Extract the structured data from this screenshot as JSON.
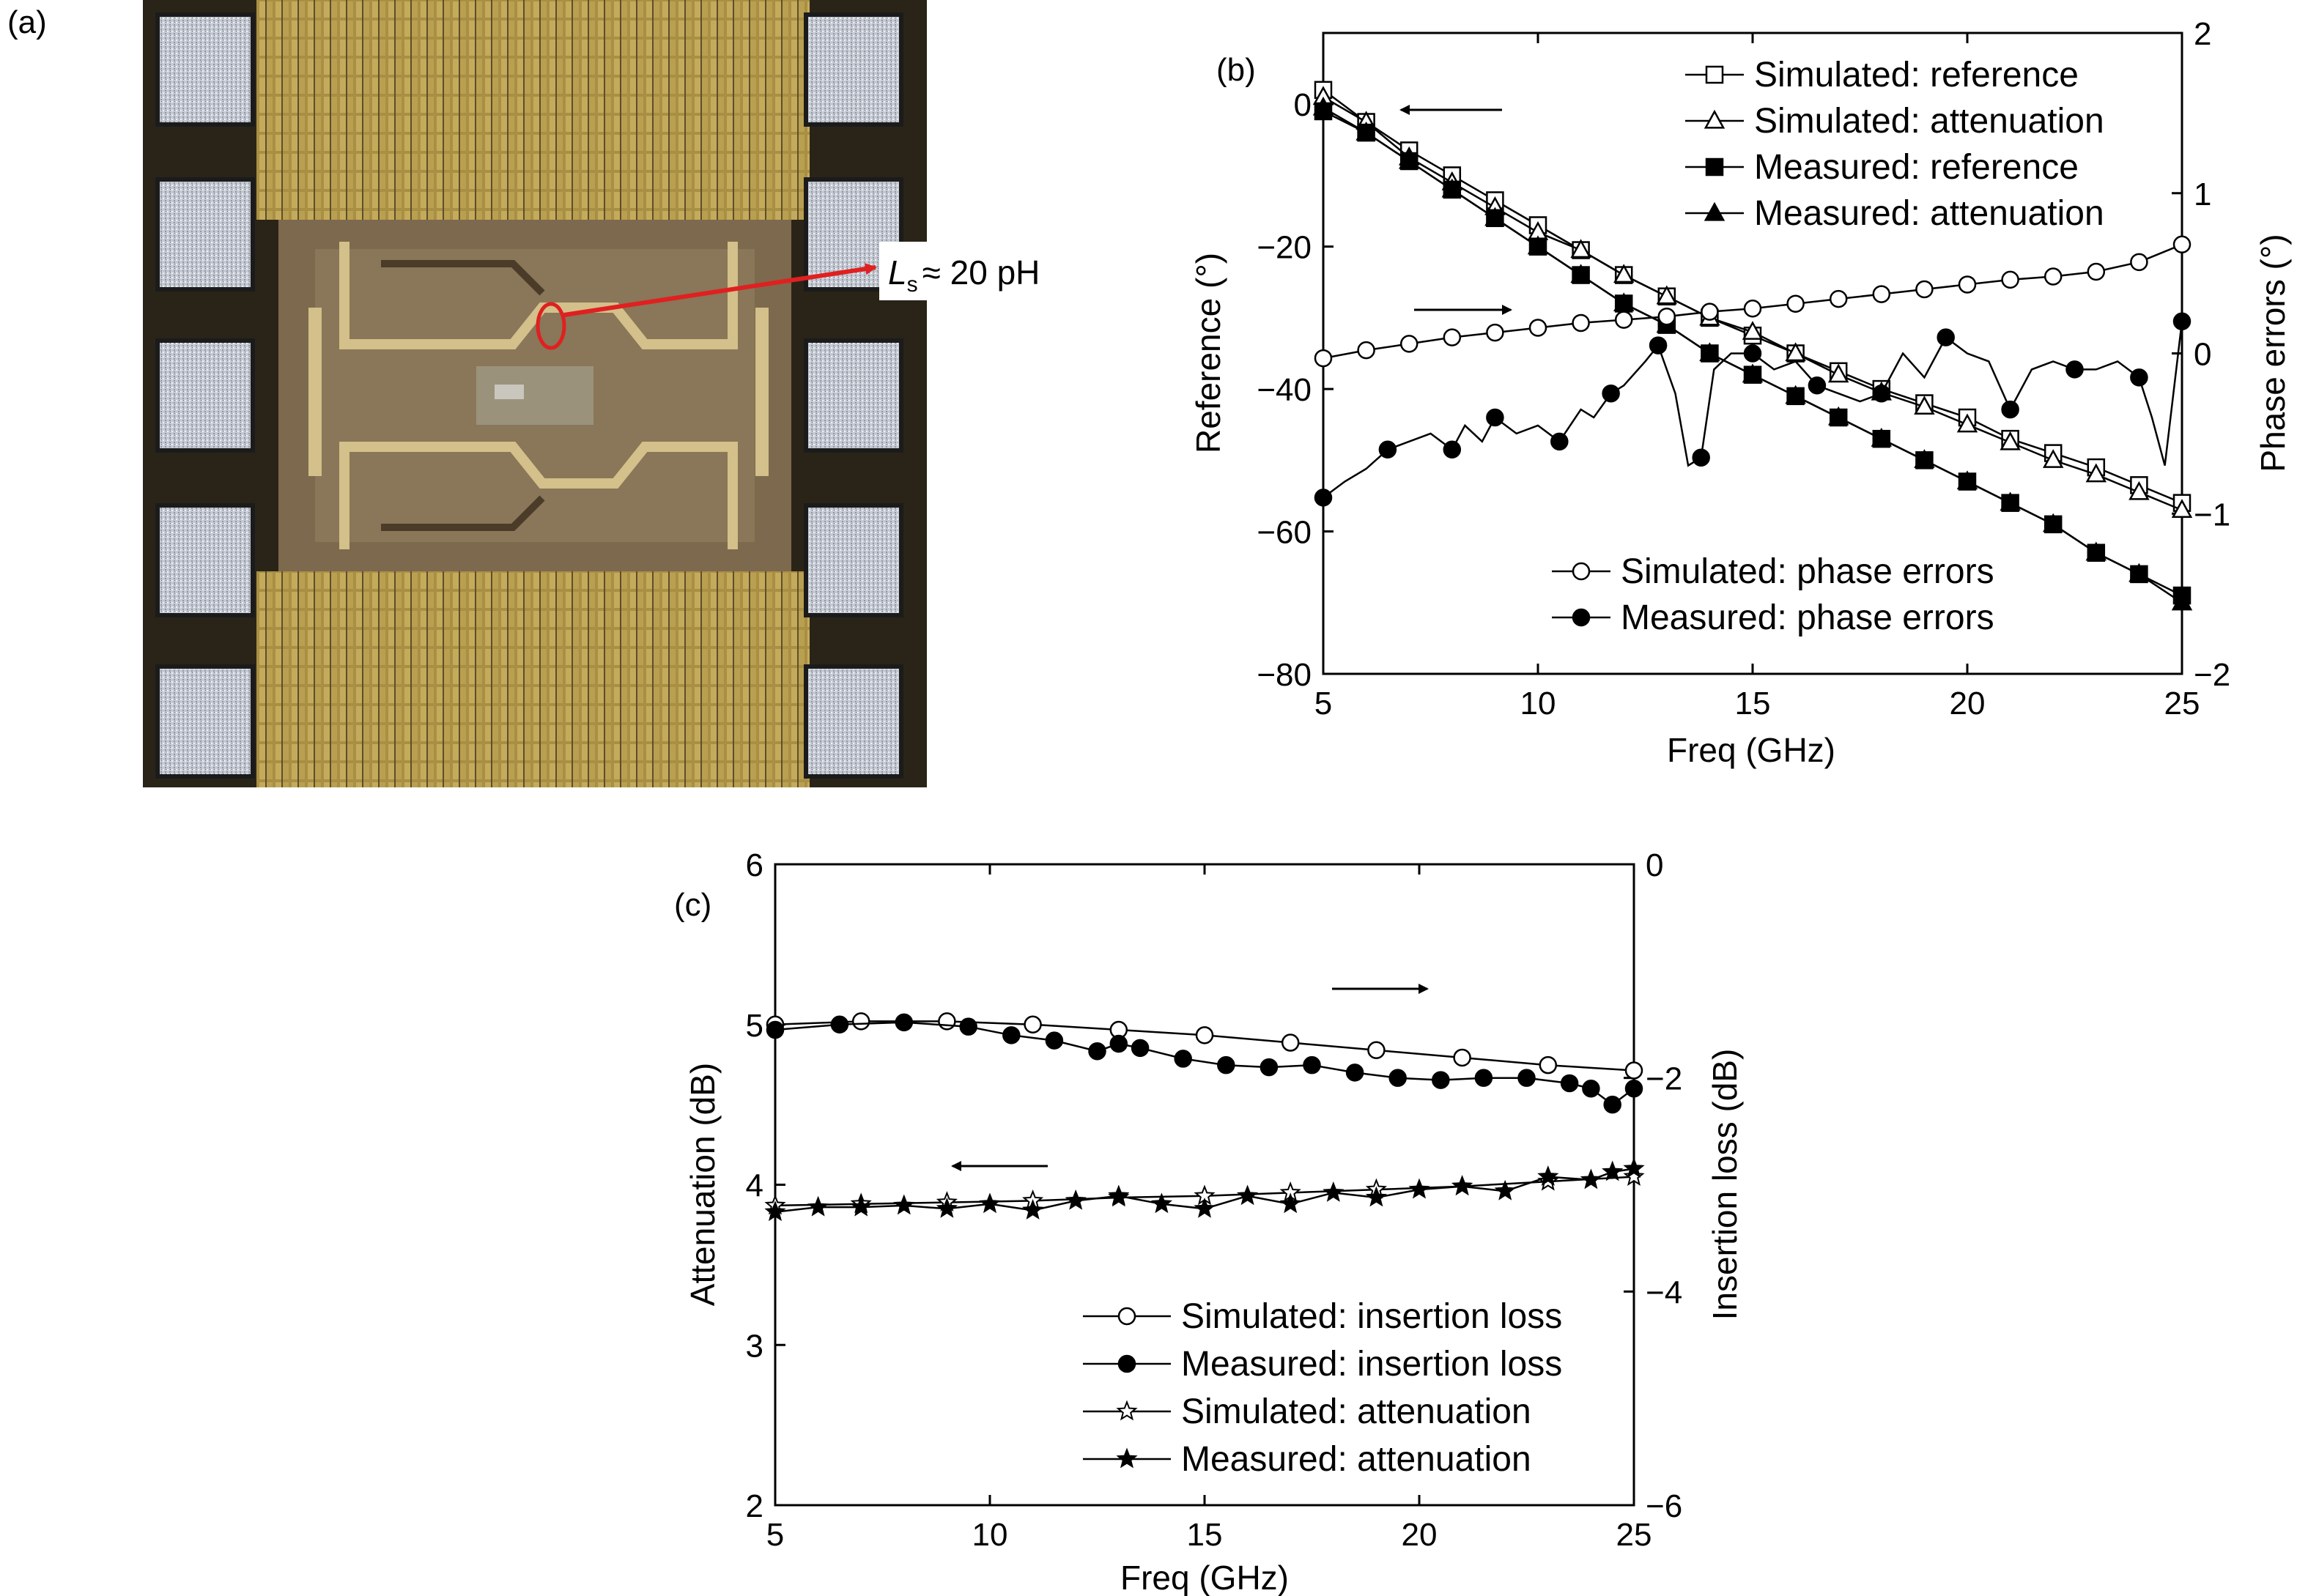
{
  "panel_a": {
    "label": "(a)",
    "annotation": {
      "symbol": "L",
      "subscript": "s",
      "text": "≈ 20 pH"
    },
    "colors": {
      "arrow": "#e02020",
      "chip_gold": "#b49a4a",
      "chip_brown": "#7e6a4e",
      "pad": "#c8ccd4"
    }
  },
  "chart_data": [
    {
      "panel": "(b)",
      "type": "line",
      "xlabel": "Freq (GHz)",
      "ylabel_left": "Reference (°)",
      "ylabel_right": "Phase errors (°)",
      "xlim": [
        5,
        25
      ],
      "ylim_left": [
        -80,
        10
      ],
      "ylim_right": [
        -2,
        2
      ],
      "xticks": [
        5,
        10,
        15,
        20,
        25
      ],
      "yticks_left": [
        0,
        -20,
        -40,
        -60,
        -80
      ],
      "yticks_right": [
        2,
        1,
        0,
        -1,
        -2
      ],
      "xtick_labels": [
        "5",
        "10",
        "15",
        "20",
        "25"
      ],
      "ytick_labels_left": [
        "0",
        "−20",
        "−40",
        "−60",
        "−80"
      ],
      "ytick_labels_right": [
        "2",
        "1",
        "0",
        "−1",
        "−2"
      ],
      "legend_top": [
        "Simulated: reference",
        "Simulated: attenuation",
        "Measured: reference",
        "Measured: attenuation"
      ],
      "legend_bottom": [
        "Simulated: phase errors",
        "Measured: phase errors"
      ],
      "series": [
        {
          "name": "Simulated: reference",
          "axis": "left",
          "marker": "square-open",
          "x": [
            5,
            6,
            7,
            8,
            9,
            10,
            11,
            12,
            13,
            14,
            15,
            16,
            17,
            18,
            19,
            20,
            21,
            22,
            23,
            24,
            25
          ],
          "y": [
            2,
            -2.5,
            -6.5,
            -10,
            -13.5,
            -17,
            -20.5,
            -24,
            -27,
            -30,
            -32.5,
            -35,
            -37.5,
            -40,
            -42,
            -44,
            -47,
            -49,
            -51,
            -53.5,
            -56
          ]
        },
        {
          "name": "Simulated: attenuation",
          "axis": "left",
          "marker": "triangle-open",
          "x": [
            5,
            6,
            7,
            8,
            9,
            10,
            11,
            12,
            13,
            14,
            15,
            16,
            17,
            18,
            19,
            20,
            21,
            22,
            23,
            24,
            25
          ],
          "y": [
            1,
            -2.5,
            -7.5,
            -11,
            -14.5,
            -18,
            -20.5,
            -24,
            -27,
            -30,
            -32,
            -35,
            -38,
            -40.5,
            -42.5,
            -45,
            -47.5,
            -50,
            -52,
            -54.5,
            -57
          ]
        },
        {
          "name": "Measured: reference",
          "axis": "left",
          "marker": "square-filled",
          "x": [
            5,
            6,
            7,
            8,
            9,
            10,
            11,
            12,
            13,
            14,
            15,
            16,
            17,
            18,
            19,
            20,
            21,
            22,
            23,
            24,
            25
          ],
          "y": [
            -1,
            -4,
            -8,
            -12,
            -16,
            -20,
            -24,
            -28,
            -31,
            -35,
            -38,
            -41,
            -44,
            -47,
            -50,
            -53,
            -56,
            -59,
            -63,
            -66,
            -69
          ]
        },
        {
          "name": "Measured: attenuation",
          "axis": "left",
          "marker": "triangle-filled",
          "x": [
            5,
            6,
            7,
            8,
            9,
            10,
            11,
            12,
            13,
            14,
            15,
            16,
            17,
            18,
            19,
            20,
            21,
            22,
            23,
            24,
            25
          ],
          "y": [
            -0.5,
            -4,
            -8,
            -12,
            -16,
            -20,
            -24,
            -28,
            -31,
            -35,
            -38,
            -41,
            -44,
            -47,
            -50,
            -53,
            -56,
            -59,
            -63,
            -66,
            -70
          ]
        },
        {
          "name": "Simulated: phase errors",
          "axis": "right",
          "marker": "circle-open",
          "x": [
            5,
            6,
            7,
            8,
            9,
            10,
            11,
            12,
            13,
            14,
            15,
            16,
            17,
            18,
            19,
            20,
            21,
            22,
            23,
            24,
            25
          ],
          "y": [
            -0.03,
            0.02,
            0.06,
            0.1,
            0.13,
            0.16,
            0.19,
            0.21,
            0.23,
            0.26,
            0.28,
            0.31,
            0.34,
            0.37,
            0.4,
            0.43,
            0.46,
            0.48,
            0.51,
            0.57,
            0.68
          ]
        },
        {
          "name": "Measured: phase errors",
          "axis": "right",
          "marker": "circle-filled",
          "x": [
            5,
            5.5,
            6,
            6.5,
            7,
            7.5,
            8,
            8.3,
            8.7,
            9,
            9.5,
            10,
            10.5,
            11,
            11.3,
            11.7,
            12,
            12.5,
            12.8,
            13.2,
            13.5,
            13.8,
            14.1,
            14.5,
            15,
            15.5,
            16,
            16.5,
            17,
            17.5,
            18,
            18.5,
            19,
            19.5,
            20,
            20.5,
            21,
            21.5,
            22,
            22.5,
            23,
            23.5,
            24,
            24.3,
            24.6,
            25
          ],
          "y": [
            -0.9,
            -0.8,
            -0.72,
            -0.6,
            -0.55,
            -0.5,
            -0.6,
            -0.45,
            -0.55,
            -0.4,
            -0.5,
            -0.45,
            -0.55,
            -0.35,
            -0.4,
            -0.25,
            -0.2,
            -0.05,
            0.05,
            -0.25,
            -0.7,
            -0.65,
            -0.1,
            0.0,
            0.0,
            -0.1,
            -0.05,
            -0.2,
            -0.25,
            -0.3,
            -0.25,
            0.0,
            -0.15,
            0.1,
            0.0,
            -0.05,
            -0.35,
            -0.1,
            -0.05,
            -0.1,
            -0.1,
            -0.05,
            -0.15,
            -0.4,
            -0.7,
            0.2
          ]
        }
      ]
    },
    {
      "panel": "(c)",
      "type": "line",
      "xlabel": "Freq (GHz)",
      "ylabel_left": "Attenuation (dB)",
      "ylabel_right": "Insertion loss (dB)",
      "xlim": [
        5,
        25
      ],
      "ylim_left": [
        2,
        6
      ],
      "ylim_right": [
        -6,
        0
      ],
      "xticks": [
        5,
        10,
        15,
        20,
        25
      ],
      "yticks_left": [
        6,
        5,
        4,
        3,
        2
      ],
      "yticks_right": [
        0,
        -2,
        -4,
        -6
      ],
      "xtick_labels": [
        "5",
        "10",
        "15",
        "20",
        "25"
      ],
      "ytick_labels_left": [
        "6",
        "5",
        "4",
        "3",
        "2"
      ],
      "ytick_labels_right": [
        "0",
        "−2",
        "−4",
        "−6"
      ],
      "legend": [
        "Simulated: insertion loss",
        "Measured: insertion loss",
        "Simulated: attenuation",
        "Measured: attenuation"
      ],
      "series": [
        {
          "name": "Simulated: insertion loss",
          "axis": "right",
          "marker": "circle-open",
          "x": [
            5,
            7,
            9,
            11,
            13,
            15,
            17,
            19,
            21,
            23,
            25
          ],
          "y": [
            -1.5,
            -1.47,
            -1.47,
            -1.5,
            -1.55,
            -1.6,
            -1.67,
            -1.74,
            -1.81,
            -1.88,
            -1.93
          ]
        },
        {
          "name": "Measured: insertion loss",
          "axis": "right",
          "marker": "circle-filled",
          "x": [
            5,
            6.5,
            8,
            9.5,
            10.5,
            11.5,
            12.5,
            13,
            13.5,
            14.5,
            15.5,
            16.5,
            17.5,
            18.5,
            19.5,
            20.5,
            21.5,
            22.5,
            23.5,
            24,
            24.5,
            25
          ],
          "y": [
            -1.55,
            -1.5,
            -1.48,
            -1.52,
            -1.6,
            -1.65,
            -1.75,
            -1.68,
            -1.72,
            -1.82,
            -1.88,
            -1.9,
            -1.88,
            -1.95,
            -2.0,
            -2.02,
            -2.0,
            -2.0,
            -2.05,
            -2.1,
            -2.25,
            -2.1
          ]
        },
        {
          "name": "Simulated: attenuation",
          "axis": "left",
          "marker": "star-open",
          "x": [
            5,
            7,
            9,
            11,
            13,
            15,
            17,
            19,
            21,
            23,
            25
          ],
          "y": [
            3.87,
            3.88,
            3.89,
            3.9,
            3.92,
            3.93,
            3.95,
            3.97,
            3.99,
            4.02,
            4.05
          ]
        },
        {
          "name": "Measured: attenuation",
          "axis": "left",
          "marker": "star-filled",
          "x": [
            5,
            6,
            7,
            8,
            9,
            10,
            11,
            12,
            13,
            14,
            15,
            16,
            17,
            18,
            19,
            20,
            21,
            22,
            23,
            24,
            24.5,
            25
          ],
          "y": [
            3.83,
            3.86,
            3.86,
            3.87,
            3.85,
            3.88,
            3.84,
            3.9,
            3.93,
            3.88,
            3.85,
            3.93,
            3.88,
            3.95,
            3.92,
            3.97,
            3.99,
            3.96,
            4.05,
            4.03,
            4.08,
            4.1
          ]
        }
      ]
    }
  ]
}
